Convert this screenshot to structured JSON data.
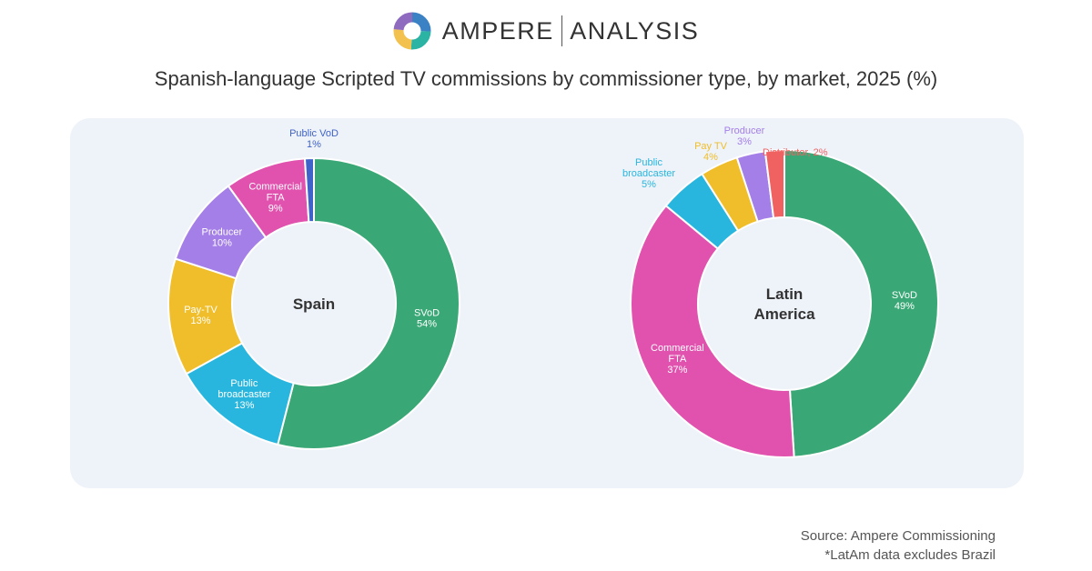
{
  "logo": {
    "brand": "AMPERE",
    "sub": "ANALYSIS",
    "mark_colors": [
      "#3b82c4",
      "#2bb3a3",
      "#f2c14e",
      "#8e6bbf"
    ]
  },
  "title": "Spanish-language Scripted TV commissions by commissioner type, by market, 2025 (%)",
  "source": {
    "line1": "Source: Ampere Commissioning",
    "line2": "*LatAm data excludes Brazil"
  },
  "colors": {
    "panel": "#eef2f9"
  },
  "chart_data": [
    {
      "type": "pie",
      "center_label": [
        "Spain"
      ],
      "slices": [
        {
          "name": "SVoD",
          "value": 54,
          "lines": [
            "SVoD",
            "54%"
          ],
          "color": "#3aa876",
          "label_color": "#ffffff",
          "label_pos": "inside"
        },
        {
          "name": "Public broadcaster",
          "value": 13,
          "lines": [
            "Public",
            "broadcaster",
            "13%"
          ],
          "color": "#29b6de",
          "label_color": "#ffffff",
          "label_pos": "inside"
        },
        {
          "name": "Pay-TV",
          "value": 13,
          "lines": [
            "Pay-TV",
            "13%"
          ],
          "color": "#f0be2a",
          "label_color": "#ffffff",
          "label_pos": "inside"
        },
        {
          "name": "Producer",
          "value": 10,
          "lines": [
            "Producer",
            "10%"
          ],
          "color": "#a47fe8",
          "label_color": "#ffffff",
          "label_pos": "inside"
        },
        {
          "name": "Commercial FTA",
          "value": 9,
          "lines": [
            "Commercial",
            "FTA",
            "9%"
          ],
          "color": "#e052ad",
          "label_color": "#ffffff",
          "label_pos": "inside"
        },
        {
          "name": "Public VoD",
          "value": 1,
          "lines": [
            "Public VoD",
            "1%"
          ],
          "color": "#3f63c9",
          "label_color": "#3f63c9",
          "label_pos": "outside"
        }
      ]
    },
    {
      "type": "pie",
      "center_label": [
        "Latin",
        "America"
      ],
      "slices": [
        {
          "name": "SVoD",
          "value": 49,
          "lines": [
            "SVoD",
            "49%"
          ],
          "color": "#3aa876",
          "label_color": "#ffffff",
          "label_pos": "inside"
        },
        {
          "name": "Commercial FTA",
          "value": 37,
          "lines": [
            "Commercial",
            "FTA",
            "37%"
          ],
          "color": "#e052ad",
          "label_color": "#ffffff",
          "label_pos": "inside"
        },
        {
          "name": "Public broadcaster",
          "value": 5,
          "lines": [
            "Public",
            "broadcaster",
            "5%"
          ],
          "color": "#29b6de",
          "label_color": "#29b6de",
          "label_pos": "outside"
        },
        {
          "name": "Pay TV",
          "value": 4,
          "lines": [
            "Pay TV",
            "4%"
          ],
          "color": "#f0be2a",
          "label_color": "#f0be2a",
          "label_pos": "outside"
        },
        {
          "name": "Producer",
          "value": 3,
          "lines": [
            "Producer",
            "3%"
          ],
          "color": "#a47fe8",
          "label_color": "#a47fe8",
          "label_pos": "outside"
        },
        {
          "name": "Distributor",
          "value": 2,
          "lines": [
            "Distributor, 2%"
          ],
          "color": "#f06262",
          "label_color": "#f06262",
          "label_pos": "outside"
        }
      ]
    }
  ]
}
